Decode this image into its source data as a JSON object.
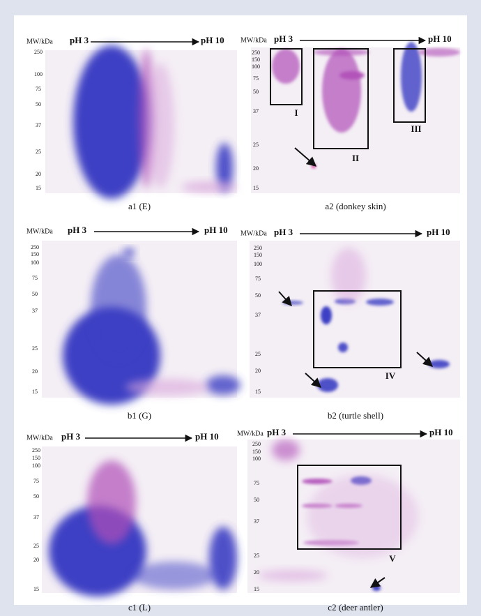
{
  "panels": [
    {
      "mw_label": "MW/kDa",
      "ph_start": "pH 3",
      "ph_end": "pH 10",
      "mw_ticks": [
        250,
        100,
        75,
        50,
        37,
        25,
        20,
        15
      ],
      "box_labels": [],
      "caption": "a1 (E)"
    },
    {
      "mw_label": "MW/kDa",
      "ph_start": "pH 3",
      "ph_end": "pH 10",
      "mw_ticks": [
        250,
        150,
        100,
        75,
        50,
        37,
        25,
        20,
        15
      ],
      "box_labels": [
        "I",
        "II",
        "III"
      ],
      "caption": "a2 (donkey skin)"
    },
    {
      "mw_label": "MW/kDa",
      "ph_start": "pH 3",
      "ph_end": "pH 10",
      "mw_ticks": [
        250,
        150,
        100,
        75,
        50,
        37,
        25,
        20,
        15
      ],
      "box_labels": [],
      "caption": "b1 (G)"
    },
    {
      "mw_label": "MW/kDa",
      "ph_start": "pH 3",
      "ph_end": "pH 10",
      "mw_ticks": [
        250,
        150,
        100,
        75,
        50,
        37,
        25,
        20,
        15
      ],
      "box_labels": [
        "IV"
      ],
      "caption": "b2 (turtle shell)"
    },
    {
      "mw_label": "MW/kDa",
      "ph_start": "pH 3",
      "ph_end": "pH 10",
      "mw_ticks": [
        250,
        150,
        100,
        75,
        50,
        37,
        25,
        20,
        15
      ],
      "box_labels": [],
      "caption": "c1 (L)"
    },
    {
      "mw_label": "MW/kDa",
      "ph_start": "pH 3",
      "ph_end": "pH 10",
      "mw_ticks": [
        250,
        150,
        100,
        75,
        50,
        37,
        25,
        20,
        15
      ],
      "box_labels": [
        "V"
      ],
      "caption": "c2 (deer antler)"
    }
  ]
}
